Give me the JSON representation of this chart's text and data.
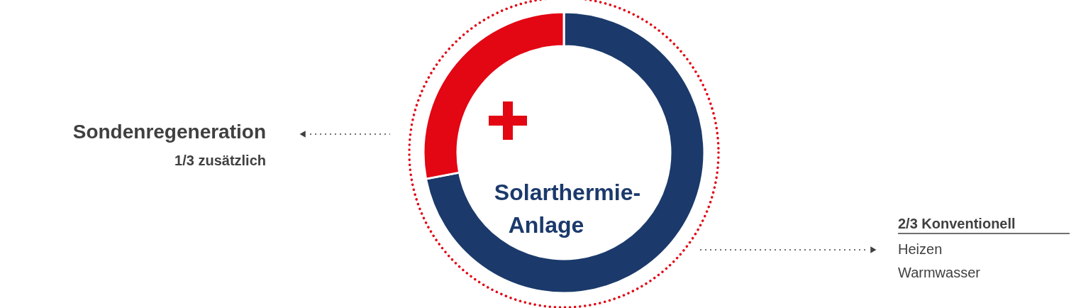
{
  "chart_data": {
    "type": "donut",
    "categories": [
      null,
      null
    ],
    "values": [
      72,
      28
    ],
    "colors": [
      "#1b3a6b",
      "#e30613"
    ],
    "annotations": [
      "Sondenregeneration",
      "1/3 zusätzlich",
      "2/3 Konventionell",
      "Heizen",
      "Warmwasser",
      "Solarthermie-",
      "Anlage"
    ]
  }
}
